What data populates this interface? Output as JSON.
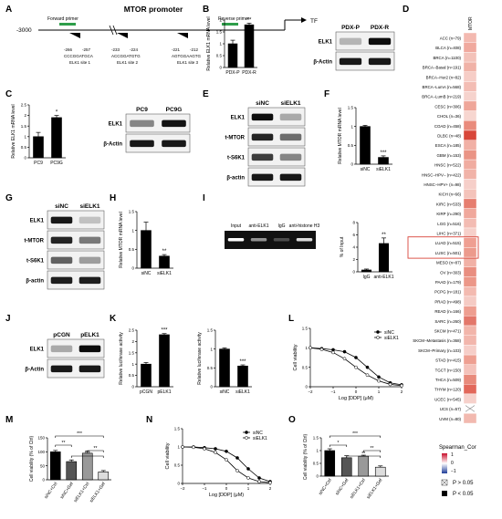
{
  "panels": {
    "A": {
      "label": "A",
      "title": "MTOR promoter",
      "start": "-3000",
      "tf": "TF",
      "forward_primer": "Forward primer",
      "reverse_primer": "Reverse primer",
      "sites": [
        {
          "pos": "-266",
          "pos2": "-257",
          "seq": "CCCGGATGCA",
          "name": "ELK1 site 1"
        },
        {
          "pos": "-233",
          "pos2": "-224",
          "seq": "ACCGGATGTG",
          "name": "ELK1 site 2"
        },
        {
          "pos": "-221",
          "pos2": "-212",
          "seq": "AGTGGAAGTG",
          "name": "ELK1 site 3"
        }
      ]
    },
    "B": {
      "label": "B",
      "ylabel": "Relative ELK1 mRNA level",
      "categories": [
        "PDX-P",
        "PDX-R"
      ],
      "sig": "**",
      "blot_lanes": [
        "PDX-P",
        "PDX-R"
      ],
      "blot_rows": [
        "ELK1",
        "β-Actin"
      ]
    },
    "C": {
      "label": "C",
      "ylabel": "Relative ELK1 mRNA level",
      "categories": [
        "PC9",
        "PC9G"
      ],
      "sig": "*",
      "blot_lanes": [
        "PC9",
        "PC9G"
      ],
      "blot_rows": [
        "ELK1",
        "β-Actin"
      ]
    },
    "D": {
      "label": "D",
      "column": "MTOR",
      "legend_title": "Spearman_Cor",
      "legend_ticks": [
        "1",
        "0",
        "−1"
      ],
      "p_hi": "P > 0.05",
      "p_lo": "P < 0.05",
      "cancers": [
        "ACC (n=79)",
        "BLCA (n=408)",
        "BRCA (n=1100)",
        "BRCA−Basal (n=191)",
        "BRCA−Her2 (n=82)",
        "BRCA−LumA (n=568)",
        "BRCA−LumB (n=219)",
        "CESC (n=306)",
        "CHOL (n=36)",
        "COAD (n=458)",
        "DLBC (n=48)",
        "ESCA (n=185)",
        "GBM (n=153)",
        "HNSC (n=522)",
        "HNSC−HPV− (n=422)",
        "HNSC−HPV+ (n=98)",
        "KICH (n=66)",
        "KIRC (n=533)",
        "KIRP (n=290)",
        "LGG (n=516)",
        "LIHC (n=371)",
        "LUAD (n=515)",
        "LUSC (n=501)",
        "MESO (n=87)",
        "OV (n=303)",
        "PAAD (n=179)",
        "PCPG (n=181)",
        "PRAD (n=498)",
        "READ (n=166)",
        "SARC (n=260)",
        "SKCM (n=471)",
        "SKCM−Metastasis (n=368)",
        "SKCM−Primary (n=103)",
        "STAD (n=415)",
        "TGCT (n=150)",
        "THCA (n=509)",
        "THYM (n=120)",
        "UCEC (n=545)",
        "UCS (n=57)",
        "UVM (n=80)"
      ],
      "colors": [
        "#f3b9b0",
        "#f0a99e",
        "#f3c2b9",
        "#f0b2a7",
        "#f6cdc6",
        "#f3bdb4",
        "#f6d3cd",
        "#efa699",
        "#f7d6d0",
        "#e98b7c",
        "#d8473a",
        "#f1b0a5",
        "#ea9485",
        "#f0aca0",
        "#f1b3a8",
        "#f6cfc9",
        "#f4c3ba",
        "#e67e6f",
        "#f0a89c",
        "#f3bcb3",
        "#f6d0ca",
        "#ef9f92",
        "#ec9a8c",
        "#f1b1a6",
        "#e98e80",
        "#ec9788",
        "#f3bab0",
        "#f5cbc4",
        "#ee9e90",
        "#e3776a",
        "#f2b5aa",
        "#f2b6ac",
        "#f6cec8",
        "#ee9f91",
        "#f4c2ba",
        "#e88a7b",
        "#e2685a",
        "#f6d1cb",
        "#ffffff",
        "#f2b9af"
      ]
    },
    "E": {
      "label": "E",
      "lanes": [
        "siNC",
        "siELK1"
      ],
      "rows": [
        "ELK1",
        "t-MTOR",
        "t-S6K1",
        "β-actin"
      ]
    },
    "F": {
      "label": "F",
      "ylabel": "Relative MTOR mRNA level",
      "categories": [
        "siNC",
        "siELK1"
      ],
      "sig": "***"
    },
    "G": {
      "label": "G",
      "lanes": [
        "siNC",
        "siELK1"
      ],
      "rows": [
        "ELK1",
        "t-MTOR",
        "t-S6K1",
        "β-actin"
      ]
    },
    "H": {
      "label": "H",
      "ylabel": "Relative MTOR mRNA level",
      "categories": [
        "siNC",
        "siELK1"
      ],
      "sig": "**"
    },
    "I": {
      "label": "I",
      "gel_lanes": [
        "Input",
        "anti-ELK1",
        "IgG",
        "anti-histone H3"
      ],
      "ylabel": "% of Input",
      "categories": [
        "IgG",
        "anti-ELK1"
      ],
      "sig": "**"
    },
    "J": {
      "label": "J",
      "lanes": [
        "pCGN",
        "pELK1"
      ],
      "rows": [
        "ELK1",
        "β-Actin"
      ]
    },
    "K": {
      "label": "K",
      "ylabel": "Relative luciferase activity",
      "left_categories": [
        "pCGN",
        "pELK1"
      ],
      "left_sig": "***",
      "right_categories": [
        "siNC",
        "siELK1"
      ],
      "right_sig": "***"
    },
    "L": {
      "label": "L",
      "ylabel": "Cell viability",
      "xlabel": "Log [DDP] (μM)",
      "series": [
        "siNC",
        "siELK1"
      ]
    },
    "M": {
      "label": "M",
      "ylabel": "Cell viability (% of Ctrl)",
      "categories": [
        "siNC+Ctrl",
        "siNC+Gef",
        "siELK1+Ctrl",
        "siELK1+Gef"
      ],
      "sigs": [
        "***",
        "**",
        "**",
        "***"
      ]
    },
    "N": {
      "label": "N",
      "ylabel": "Cell viability",
      "xlabel": "Log [DDP] (μM)",
      "series": [
        "siNC",
        "siELK1"
      ]
    },
    "O": {
      "label": "O",
      "ylabel": "Cell viability (% of Ctrl)",
      "categories": [
        "siNC+Ctrl",
        "siNC+Gef",
        "siELK1+Ctrl",
        "siELK1+Gef"
      ],
      "sigs": [
        "***",
        "*",
        "**",
        "**"
      ]
    }
  },
  "chart_data": [
    {
      "panel": "B",
      "type": "bar",
      "categories": [
        "PDX-P",
        "PDX-R"
      ],
      "values": [
        1.0,
        1.8
      ],
      "errors": [
        0.15,
        0.07
      ],
      "ylabel": "Relative ELK1 mRNA level",
      "ylim": [
        0,
        2.0
      ],
      "yticks": [
        0,
        0.5,
        1.0,
        1.5,
        2.0
      ]
    },
    {
      "panel": "C",
      "type": "bar",
      "categories": [
        "PC9",
        "PC9G"
      ],
      "values": [
        1.0,
        1.9
      ],
      "errors": [
        0.2,
        0.1
      ],
      "ylabel": "Relative ELK1 mRNA level",
      "ylim": [
        0,
        2.5
      ],
      "yticks": [
        0,
        0.5,
        1.0,
        1.5,
        2.0,
        2.5
      ]
    },
    {
      "panel": "F",
      "type": "bar",
      "categories": [
        "siNC",
        "siELK1"
      ],
      "values": [
        1.0,
        0.18
      ],
      "errors": [
        0.03,
        0.04
      ],
      "ylabel": "Relative MTOR mRNA level",
      "ylim": [
        0,
        1.5
      ],
      "yticks": [
        0,
        0.5,
        1.0,
        1.5
      ]
    },
    {
      "panel": "H",
      "type": "bar",
      "categories": [
        "siNC",
        "siELK1"
      ],
      "values": [
        1.0,
        0.32
      ],
      "errors": [
        0.22,
        0.04
      ],
      "ylabel": "Relative MTOR mRNA level",
      "ylim": [
        0,
        1.5
      ],
      "yticks": [
        0,
        0.5,
        1.0,
        1.5
      ]
    },
    {
      "panel": "I",
      "type": "bar",
      "categories": [
        "IgG",
        "anti-ELK1"
      ],
      "values": [
        0.3,
        4.6
      ],
      "errors": [
        0.15,
        0.9
      ],
      "ylabel": "% of Input",
      "ylim": [
        0,
        8
      ],
      "yticks": [
        0,
        2,
        4,
        6,
        8
      ]
    },
    {
      "panel": "K-left",
      "type": "bar",
      "categories": [
        "pCGN",
        "pELK1"
      ],
      "values": [
        1.0,
        2.3
      ],
      "errors": [
        0.07,
        0.05
      ],
      "ylabel": "Relative luciferase activity",
      "ylim": [
        0,
        2.5
      ],
      "yticks": [
        0,
        0.5,
        1.0,
        1.5,
        2.0,
        2.5
      ]
    },
    {
      "panel": "K-right",
      "type": "bar",
      "categories": [
        "siNC",
        "siELK1"
      ],
      "values": [
        1.0,
        0.55
      ],
      "errors": [
        0.03,
        0.03
      ],
      "ylabel": "Relative luciferase activity",
      "ylim": [
        0,
        1.5
      ],
      "yticks": [
        0,
        0.5,
        1.0,
        1.5
      ]
    },
    {
      "panel": "L",
      "type": "line",
      "x": [
        -2,
        -1.5,
        -1,
        -0.5,
        0,
        0.5,
        1,
        1.5,
        2
      ],
      "series": [
        {
          "name": "siNC",
          "values": [
            1.0,
            0.98,
            0.95,
            0.9,
            0.75,
            0.5,
            0.25,
            0.1,
            0.05
          ]
        },
        {
          "name": "siELK1",
          "values": [
            1.0,
            0.96,
            0.88,
            0.72,
            0.5,
            0.3,
            0.15,
            0.06,
            0.03
          ]
        }
      ],
      "xlabel": "Log [DDP] (μM)",
      "ylabel": "Cell viability",
      "xlim": [
        -2,
        2
      ],
      "ylim": [
        0,
        1.5
      ],
      "xticks": [
        -2,
        -1,
        0,
        1,
        2
      ],
      "yticks": [
        0,
        0.5,
        1.0,
        1.5
      ]
    },
    {
      "panel": "M",
      "type": "bar",
      "categories": [
        "siNC+Ctrl",
        "siNC+Gef",
        "siELK1+Ctrl",
        "siELK1+Gef"
      ],
      "values": [
        100,
        65,
        95,
        28
      ],
      "errors": [
        5,
        6,
        8,
        5
      ],
      "ylabel": "Cell viability (% of Ctrl)",
      "ylim": [
        0,
        150
      ],
      "yticks": [
        0,
        50,
        100,
        150
      ]
    },
    {
      "panel": "N",
      "type": "line",
      "x": [
        -2,
        -1.5,
        -1,
        -0.5,
        0,
        0.5,
        1,
        1.5,
        2
      ],
      "series": [
        {
          "name": "siNC",
          "values": [
            1.0,
            1.0,
            0.98,
            0.95,
            0.88,
            0.7,
            0.4,
            0.15,
            0.05
          ]
        },
        {
          "name": "siELK1",
          "values": [
            1.0,
            0.99,
            0.95,
            0.85,
            0.65,
            0.35,
            0.15,
            0.05,
            0.02
          ]
        }
      ],
      "xlabel": "Log [DDP] (μM)",
      "ylabel": "Cell viability",
      "xlim": [
        -2,
        2
      ],
      "ylim": [
        0,
        1.5
      ],
      "xticks": [
        -2,
        -1,
        0,
        1,
        2
      ],
      "yticks": [
        0,
        0.5,
        1.0,
        1.5
      ]
    },
    {
      "panel": "O",
      "type": "bar",
      "categories": [
        "siNC+Ctrl",
        "siNC+Gef",
        "siELK1+Ctrl",
        "siELK1+Gef"
      ],
      "values": [
        1.0,
        0.72,
        0.78,
        0.35
      ],
      "errors": [
        0.07,
        0.08,
        0.04,
        0.05
      ],
      "ylabel": "Cell viability (% of Ctrl)",
      "ylim": [
        0,
        1.5
      ],
      "yticks": [
        0,
        0.5,
        1.0,
        1.5
      ]
    }
  ]
}
